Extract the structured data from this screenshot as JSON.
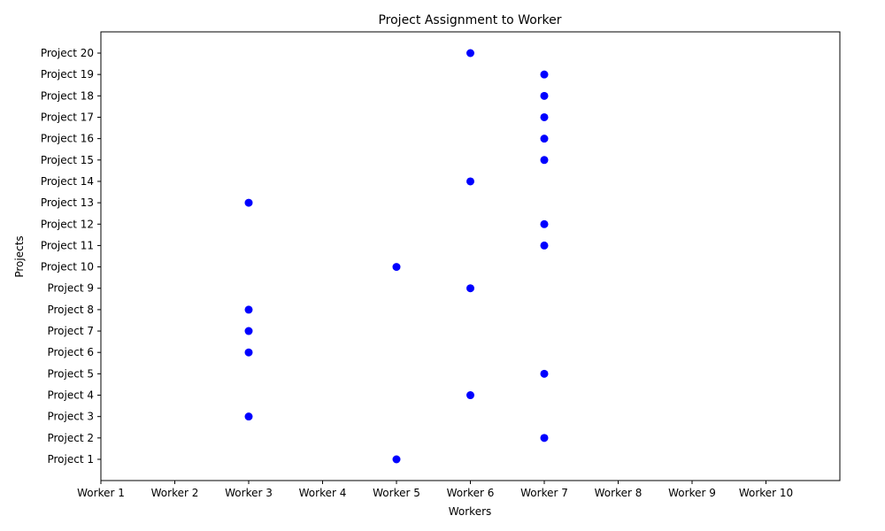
{
  "chart_data": {
    "type": "scatter",
    "title": "Project Assignment to Worker",
    "xlabel": "Workers",
    "ylabel": "Projects",
    "x_categories": [
      "Worker 1",
      "Worker 2",
      "Worker 3",
      "Worker 4",
      "Worker 5",
      "Worker 6",
      "Worker 7",
      "Worker 8",
      "Worker 9",
      "Worker 10"
    ],
    "y_categories": [
      "Project 1",
      "Project 2",
      "Project 3",
      "Project 4",
      "Project 5",
      "Project 6",
      "Project 7",
      "Project 8",
      "Project 9",
      "Project 10",
      "Project 11",
      "Project 12",
      "Project 13",
      "Project 14",
      "Project 15",
      "Project 16",
      "Project 17",
      "Project 18",
      "Project 19",
      "Project 20"
    ],
    "points": [
      {
        "project": "Project 1",
        "worker": "Worker 5"
      },
      {
        "project": "Project 2",
        "worker": "Worker 7"
      },
      {
        "project": "Project 3",
        "worker": "Worker 3"
      },
      {
        "project": "Project 4",
        "worker": "Worker 6"
      },
      {
        "project": "Project 5",
        "worker": "Worker 7"
      },
      {
        "project": "Project 6",
        "worker": "Worker 3"
      },
      {
        "project": "Project 7",
        "worker": "Worker 3"
      },
      {
        "project": "Project 8",
        "worker": "Worker 3"
      },
      {
        "project": "Project 9",
        "worker": "Worker 6"
      },
      {
        "project": "Project 10",
        "worker": "Worker 5"
      },
      {
        "project": "Project 11",
        "worker": "Worker 7"
      },
      {
        "project": "Project 12",
        "worker": "Worker 7"
      },
      {
        "project": "Project 13",
        "worker": "Worker 3"
      },
      {
        "project": "Project 14",
        "worker": "Worker 6"
      },
      {
        "project": "Project 15",
        "worker": "Worker 7"
      },
      {
        "project": "Project 16",
        "worker": "Worker 7"
      },
      {
        "project": "Project 17",
        "worker": "Worker 7"
      },
      {
        "project": "Project 18",
        "worker": "Worker 7"
      },
      {
        "project": "Project 19",
        "worker": "Worker 7"
      },
      {
        "project": "Project 20",
        "worker": "Worker 6"
      }
    ],
    "grid": false,
    "marker_color": "#0000ff"
  }
}
